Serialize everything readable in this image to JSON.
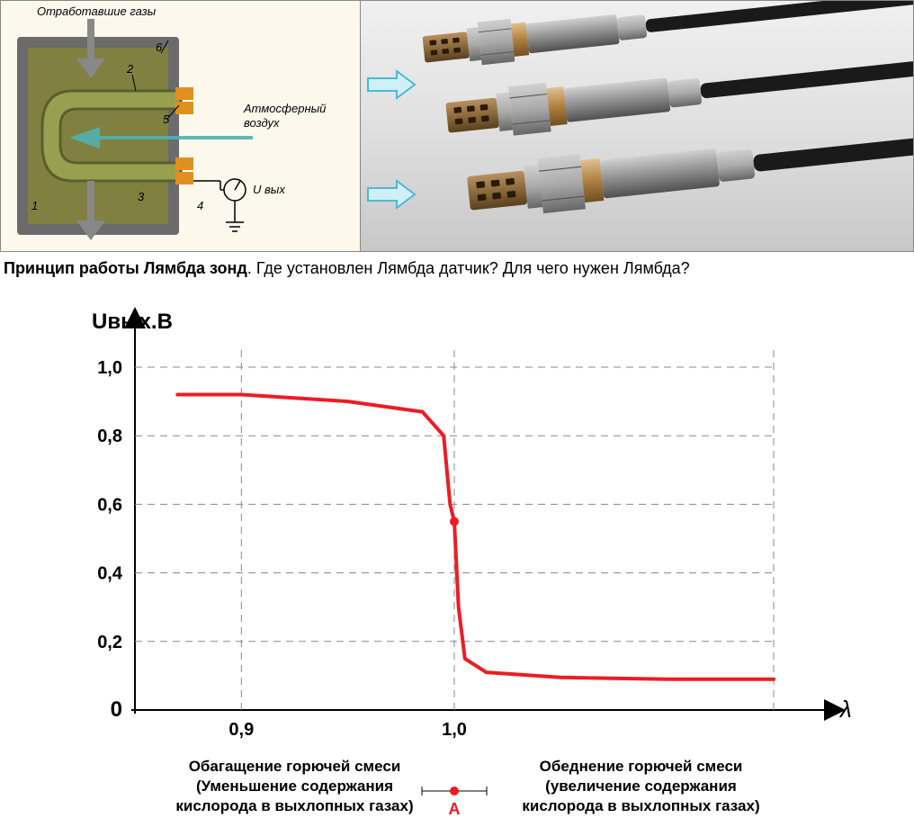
{
  "cross_section": {
    "labels": {
      "exhaust": "Отработавшие газы",
      "air": "Атмосферный\nвоздух",
      "uout": "U вых"
    },
    "callouts": [
      "1",
      "2",
      "3",
      "4",
      "5",
      "6"
    ],
    "colors": {
      "bg": "#fdf8ec",
      "tube_outer": "#6b6b6b",
      "tube_inner": "#808040",
      "element": "#98a050",
      "element_border": "#586030",
      "seal": "#e09020",
      "arrow": "#888888",
      "air_arrow": "#50b0b0",
      "airbody": "#c8e8e8",
      "text": "#000000"
    }
  },
  "photo": {
    "arrow_color": "#4db8d8",
    "arrow_fill": "#d0f0f8",
    "sensor_colors": {
      "tip": "#8a6a3a",
      "tip_dark": "#5a4020",
      "hex": "#aaaaaa",
      "hex_dark": "#666666",
      "body": "#909090",
      "body_light": "#d0d0d0",
      "ring_gold": "#b08040",
      "cable": "#1a1a1a"
    }
  },
  "caption": {
    "bold": "Принцип работы Лямбда зонд",
    "rest": ".  Где установлен Лямбда датчик? Для чего нужен Лямбда?"
  },
  "chart": {
    "type": "line",
    "ylabel": "Uвых.В",
    "xlabel": "λ",
    "xlim": [
      0.85,
      1.15
    ],
    "ylim": [
      0,
      1.05
    ],
    "yticks": [
      {
        "v": 0,
        "label": "0"
      },
      {
        "v": 0.2,
        "label": "0,2"
      },
      {
        "v": 0.4,
        "label": "0,4"
      },
      {
        "v": 0.6,
        "label": "0,6"
      },
      {
        "v": 0.8,
        "label": "0,8"
      },
      {
        "v": 1.0,
        "label": "1,0"
      }
    ],
    "xticks": [
      {
        "v": 0.9,
        "label": "0,9"
      },
      {
        "v": 1.0,
        "label": "1,0"
      }
    ],
    "curve": [
      {
        "x": 0.87,
        "y": 0.92
      },
      {
        "x": 0.9,
        "y": 0.92
      },
      {
        "x": 0.95,
        "y": 0.9
      },
      {
        "x": 0.985,
        "y": 0.87
      },
      {
        "x": 0.995,
        "y": 0.8
      },
      {
        "x": 0.998,
        "y": 0.6
      },
      {
        "x": 1.0,
        "y": 0.55
      },
      {
        "x": 1.002,
        "y": 0.3
      },
      {
        "x": 1.005,
        "y": 0.15
      },
      {
        "x": 1.015,
        "y": 0.11
      },
      {
        "x": 1.05,
        "y": 0.095
      },
      {
        "x": 1.1,
        "y": 0.09
      },
      {
        "x": 1.15,
        "y": 0.09
      }
    ],
    "curve_color": "#ed1c24",
    "curve_width": 4,
    "grid_color": "#888888",
    "axis_color": "#000000",
    "axis_width": 2,
    "background": "#ffffff",
    "annotations": {
      "rich": {
        "title": "Обагащение горючей смеси",
        "sub1": "(Уменьшение содержания",
        "sub2": "кислорода в выхлопных газах)"
      },
      "lean": {
        "title": "Обеднение горючей смеси",
        "sub1": "(увеличение содержания",
        "sub2": "кислорода в выхлопных газах)"
      },
      "A_label": "A",
      "A_color": "#ed1c24",
      "text_color": "#000000",
      "fontsize": 17
    }
  }
}
